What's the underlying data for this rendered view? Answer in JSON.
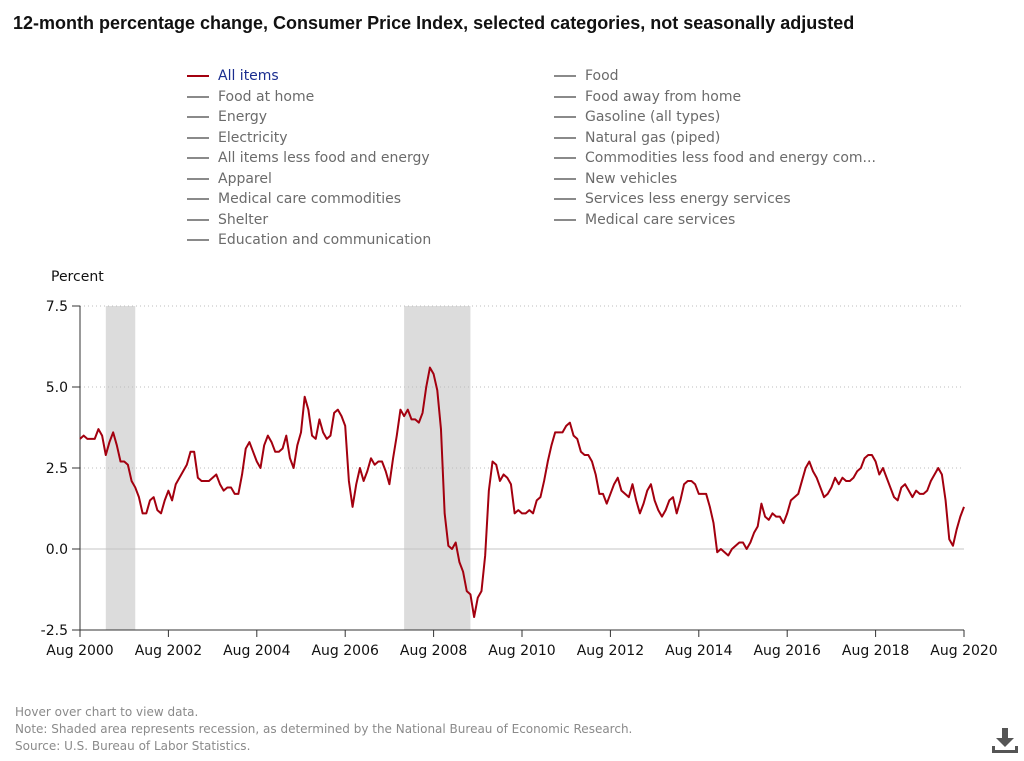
{
  "title": "12-month percentage change, Consumer Price Index, selected categories, not seasonally adjusted",
  "legend": {
    "items": [
      {
        "label": "All items",
        "active": true
      },
      {
        "label": "Food",
        "active": false
      },
      {
        "label": "Food at home",
        "active": false
      },
      {
        "label": "Food away from home",
        "active": false
      },
      {
        "label": "Energy",
        "active": false
      },
      {
        "label": "Gasoline (all types)",
        "active": false
      },
      {
        "label": "Electricity",
        "active": false
      },
      {
        "label": "Natural gas (piped)",
        "active": false
      },
      {
        "label": "All items less food and energy",
        "active": false
      },
      {
        "label": "Commodities less food and energy com...",
        "active": false
      },
      {
        "label": "Apparel",
        "active": false
      },
      {
        "label": "New vehicles",
        "active": false
      },
      {
        "label": "Medical care commodities",
        "active": false
      },
      {
        "label": "Services less energy services",
        "active": false
      },
      {
        "label": "Shelter",
        "active": false
      },
      {
        "label": "Medical care services",
        "active": false
      },
      {
        "label": "Education and communication",
        "active": false
      }
    ]
  },
  "notes": {
    "hover": "Hover over chart to view data.",
    "note": "Note: Shaded area represents recession, as determined by the National Bureau of Economic Research.",
    "source": "Source: U.S. Bureau of Labor Statistics."
  },
  "colors": {
    "series": "#a3000f",
    "recession": "#dcdcdc",
    "legend_inactive": "#8a8a8a",
    "legend_active_text": "#1a2d8f"
  },
  "icons": {
    "download": "download-icon"
  },
  "chart_data": {
    "type": "line",
    "ylabel": "Percent",
    "ylim": [
      -2.5,
      7.5
    ],
    "yticks": [
      7.5,
      5.0,
      2.5,
      0.0,
      -2.5
    ],
    "ytick_labels": [
      "7.5",
      "5.0",
      "2.5",
      "0.0",
      "-2.5"
    ],
    "xlim": [
      "2000-08",
      "2020-08"
    ],
    "xticks": [
      "2000-08",
      "2002-08",
      "2004-08",
      "2006-08",
      "2008-08",
      "2010-08",
      "2012-08",
      "2014-08",
      "2016-08",
      "2018-08",
      "2020-08"
    ],
    "xtick_labels": [
      "Aug 2000",
      "Aug 2002",
      "Aug 2004",
      "Aug 2006",
      "Aug 2008",
      "Aug 2010",
      "Aug 2012",
      "Aug 2014",
      "Aug 2016",
      "Aug 2018",
      "Aug 2020"
    ],
    "grid": "horizontal dotted",
    "recessions": [
      [
        "2001-03",
        "2001-11"
      ],
      [
        "2007-12",
        "2009-06"
      ]
    ],
    "series": [
      {
        "name": "All items",
        "x": [
          "2000-08",
          "2000-09",
          "2000-10",
          "2000-11",
          "2000-12",
          "2001-01",
          "2001-02",
          "2001-03",
          "2001-04",
          "2001-05",
          "2001-06",
          "2001-07",
          "2001-08",
          "2001-09",
          "2001-10",
          "2001-11",
          "2001-12",
          "2002-01",
          "2002-02",
          "2002-03",
          "2002-04",
          "2002-05",
          "2002-06",
          "2002-07",
          "2002-08",
          "2002-09",
          "2002-10",
          "2002-11",
          "2002-12",
          "2003-01",
          "2003-02",
          "2003-03",
          "2003-04",
          "2003-05",
          "2003-06",
          "2003-07",
          "2003-08",
          "2003-09",
          "2003-10",
          "2003-11",
          "2003-12",
          "2004-01",
          "2004-02",
          "2004-03",
          "2004-04",
          "2004-05",
          "2004-06",
          "2004-07",
          "2004-08",
          "2004-09",
          "2004-10",
          "2004-11",
          "2004-12",
          "2005-01",
          "2005-02",
          "2005-03",
          "2005-04",
          "2005-05",
          "2005-06",
          "2005-07",
          "2005-08",
          "2005-09",
          "2005-10",
          "2005-11",
          "2005-12",
          "2006-01",
          "2006-02",
          "2006-03",
          "2006-04",
          "2006-05",
          "2006-06",
          "2006-07",
          "2006-08",
          "2006-09",
          "2006-10",
          "2006-11",
          "2006-12",
          "2007-01",
          "2007-02",
          "2007-03",
          "2007-04",
          "2007-05",
          "2007-06",
          "2007-07",
          "2007-08",
          "2007-09",
          "2007-10",
          "2007-11",
          "2007-12",
          "2008-01",
          "2008-02",
          "2008-03",
          "2008-04",
          "2008-05",
          "2008-06",
          "2008-07",
          "2008-08",
          "2008-09",
          "2008-10",
          "2008-11",
          "2008-12",
          "2009-01",
          "2009-02",
          "2009-03",
          "2009-04",
          "2009-05",
          "2009-06",
          "2009-07",
          "2009-08",
          "2009-09",
          "2009-10",
          "2009-11",
          "2009-12",
          "2010-01",
          "2010-02",
          "2010-03",
          "2010-04",
          "2010-05",
          "2010-06",
          "2010-07",
          "2010-08",
          "2010-09",
          "2010-10",
          "2010-11",
          "2010-12",
          "2011-01",
          "2011-02",
          "2011-03",
          "2011-04",
          "2011-05",
          "2011-06",
          "2011-07",
          "2011-08",
          "2011-09",
          "2011-10",
          "2011-11",
          "2011-12",
          "2012-01",
          "2012-02",
          "2012-03",
          "2012-04",
          "2012-05",
          "2012-06",
          "2012-07",
          "2012-08",
          "2012-09",
          "2012-10",
          "2012-11",
          "2012-12",
          "2013-01",
          "2013-02",
          "2013-03",
          "2013-04",
          "2013-05",
          "2013-06",
          "2013-07",
          "2013-08",
          "2013-09",
          "2013-10",
          "2013-11",
          "2013-12",
          "2014-01",
          "2014-02",
          "2014-03",
          "2014-04",
          "2014-05",
          "2014-06",
          "2014-07",
          "2014-08",
          "2014-09",
          "2014-10",
          "2014-11",
          "2014-12",
          "2015-01",
          "2015-02",
          "2015-03",
          "2015-04",
          "2015-05",
          "2015-06",
          "2015-07",
          "2015-08",
          "2015-09",
          "2015-10",
          "2015-11",
          "2015-12",
          "2016-01",
          "2016-02",
          "2016-03",
          "2016-04",
          "2016-05",
          "2016-06",
          "2016-07",
          "2016-08",
          "2016-09",
          "2016-10",
          "2016-11",
          "2016-12",
          "2017-01",
          "2017-02",
          "2017-03",
          "2017-04",
          "2017-05",
          "2017-06",
          "2017-07",
          "2017-08",
          "2017-09",
          "2017-10",
          "2017-11",
          "2017-12",
          "2018-01",
          "2018-02",
          "2018-03",
          "2018-04",
          "2018-05",
          "2018-06",
          "2018-07",
          "2018-08",
          "2018-09",
          "2018-10",
          "2018-11",
          "2018-12",
          "2019-01",
          "2019-02",
          "2019-03",
          "2019-04",
          "2019-05",
          "2019-06",
          "2019-07",
          "2019-08",
          "2019-09",
          "2019-10",
          "2019-11",
          "2019-12",
          "2020-01",
          "2020-02",
          "2020-03",
          "2020-04",
          "2020-05",
          "2020-06",
          "2020-07",
          "2020-08"
        ],
        "y": [
          3.4,
          3.5,
          3.4,
          3.4,
          3.4,
          3.7,
          3.5,
          2.9,
          3.3,
          3.6,
          3.2,
          2.7,
          2.7,
          2.6,
          2.1,
          1.9,
          1.6,
          1.1,
          1.1,
          1.5,
          1.6,
          1.2,
          1.1,
          1.5,
          1.8,
          1.5,
          2.0,
          2.2,
          2.4,
          2.6,
          3.0,
          3.0,
          2.2,
          2.1,
          2.1,
          2.1,
          2.2,
          2.3,
          2.0,
          1.8,
          1.9,
          1.9,
          1.7,
          1.7,
          2.3,
          3.1,
          3.3,
          3.0,
          2.7,
          2.5,
          3.2,
          3.5,
          3.3,
          3.0,
          3.0,
          3.1,
          3.5,
          2.8,
          2.5,
          3.2,
          3.6,
          4.7,
          4.3,
          3.5,
          3.4,
          4.0,
          3.6,
          3.4,
          3.5,
          4.2,
          4.3,
          4.1,
          3.8,
          2.1,
          1.3,
          2.0,
          2.5,
          2.1,
          2.4,
          2.8,
          2.6,
          2.7,
          2.7,
          2.4,
          2.0,
          2.8,
          3.5,
          4.3,
          4.1,
          4.3,
          4.0,
          4.0,
          3.9,
          4.2,
          5.0,
          5.6,
          5.4,
          4.9,
          3.7,
          1.1,
          0.1,
          0.0,
          0.2,
          -0.4,
          -0.7,
          -1.3,
          -1.4,
          -2.1,
          -1.5,
          -1.3,
          -0.2,
          1.8,
          2.7,
          2.6,
          2.1,
          2.3,
          2.2,
          2.0,
          1.1,
          1.2,
          1.1,
          1.1,
          1.2,
          1.1,
          1.5,
          1.6,
          2.1,
          2.7,
          3.2,
          3.6,
          3.6,
          3.6,
          3.8,
          3.9,
          3.5,
          3.4,
          3.0,
          2.9,
          2.9,
          2.7,
          2.3,
          1.7,
          1.7,
          1.4,
          1.7,
          2.0,
          2.2,
          1.8,
          1.7,
          1.6,
          2.0,
          1.5,
          1.1,
          1.4,
          1.8,
          2.0,
          1.5,
          1.2,
          1.0,
          1.2,
          1.5,
          1.6,
          1.1,
          1.5,
          2.0,
          2.1,
          2.1,
          2.0,
          1.7,
          1.7,
          1.7,
          1.3,
          0.8,
          -0.1,
          0.0,
          -0.1,
          -0.2,
          0.0,
          0.1,
          0.2,
          0.2,
          0.0,
          0.2,
          0.5,
          0.7,
          1.4,
          1.0,
          0.9,
          1.1,
          1.0,
          1.0,
          0.8,
          1.1,
          1.5,
          1.6,
          1.7,
          2.1,
          2.5,
          2.7,
          2.4,
          2.2,
          1.9,
          1.6,
          1.7,
          1.9,
          2.2,
          2.0,
          2.2,
          2.1,
          2.1,
          2.2,
          2.4,
          2.5,
          2.8,
          2.9,
          2.9,
          2.7,
          2.3,
          2.5,
          2.2,
          1.9,
          1.6,
          1.5,
          1.9,
          2.0,
          1.8,
          1.6,
          1.8,
          1.7,
          1.7,
          1.8,
          2.1,
          2.3,
          2.5,
          2.3,
          1.5,
          0.3,
          0.1,
          0.6,
          1.0,
          1.3
        ]
      }
    ]
  }
}
